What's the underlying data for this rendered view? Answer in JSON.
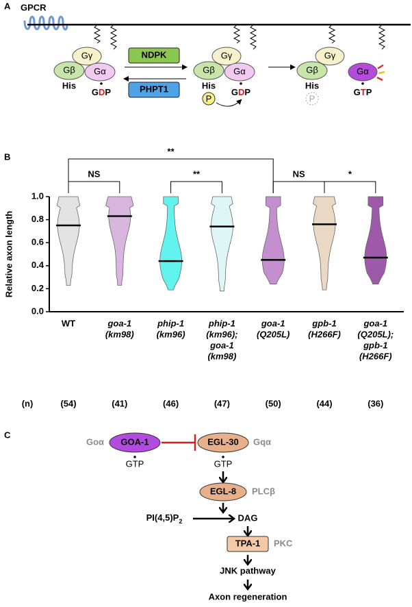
{
  "panel_a": {
    "label": "A",
    "receptor": "GPCR",
    "kinase": "NDPK",
    "phosphatase": "PHPT1",
    "complexes": [
      {
        "g_gamma": "Gγ",
        "g_beta": "Gβ",
        "g_alpha": "Gα",
        "his": "His",
        "nucleotide": [
          "G",
          "D",
          "P"
        ]
      },
      {
        "g_gamma": "Gγ",
        "g_beta": "Gβ",
        "g_alpha": "Gα",
        "his": "His",
        "phospho": "P",
        "nucleotide": [
          "G",
          "D",
          "P"
        ]
      },
      {
        "g_gamma": "Gγ",
        "g_beta": "Gβ",
        "his": "His",
        "phospho": "P"
      }
    ],
    "free_alpha": {
      "g_alpha": "Gα",
      "nucleotide": [
        "G",
        "T",
        "P"
      ]
    }
  },
  "chart_data": {
    "type": "violin",
    "panel_label": "B",
    "y_label": "Relative axon length",
    "categories": [
      [
        "WT"
      ],
      [
        "goa-1",
        "(km98)"
      ],
      [
        "phip-1",
        "(km96)"
      ],
      [
        "phip-1",
        "(km96);",
        "goa-1",
        "(km98)"
      ],
      [
        "goa-1",
        "(Q205L)"
      ],
      [
        "gpb-1",
        "(H266F)"
      ],
      [
        "goa-1",
        "(Q205L);",
        "gpb-1",
        "(H266F)"
      ]
    ],
    "values": [
      0.75,
      0.83,
      0.44,
      0.74,
      0.45,
      0.76,
      0.47
    ],
    "mins": [
      0.23,
      0.23,
      0.19,
      0.18,
      0.24,
      0.19,
      0.24
    ],
    "maxs": [
      1,
      1,
      1,
      1,
      1,
      1,
      1
    ],
    "colors": [
      "#e3e3e3",
      "#d9b6de",
      "#62f3ef",
      "#def6f6",
      "#c48fcf",
      "#e9d8c4",
      "#9d5aa8"
    ],
    "ylim": [
      0,
      1
    ],
    "yticks": [
      {
        "value": 0,
        "label": "0.0"
      },
      0.2,
      0.4,
      0.6,
      0.8,
      {
        "value": 1,
        "label": "1.0"
      }
    ],
    "n": {
      "label": "(n)",
      "values": [
        54,
        41,
        46,
        47,
        50,
        44,
        36
      ],
      "value_labels": [
        "(54)",
        "(41)",
        "(46)",
        "(47)",
        "(50)",
        "(44)",
        "(36)"
      ]
    },
    "comparisons": [
      {
        "from": 0,
        "to": 4,
        "label": "**"
      },
      {
        "from": 0,
        "to": 1,
        "label": "NS"
      },
      {
        "from": 2,
        "to": 3,
        "label": "**"
      },
      {
        "from": 4,
        "to": 5,
        "label": "NS"
      },
      {
        "from": 5,
        "to": 6,
        "label": "*"
      }
    ]
  },
  "panel_c": {
    "label": "C",
    "goa": {
      "name": "GOA-1",
      "family": "Goα",
      "nucleotide": "GTP"
    },
    "egl30": {
      "name": "EGL-30",
      "family": "Gqα",
      "nucleotide": "GTP"
    },
    "egl8": {
      "name": "EGL-8",
      "family": "PLCβ"
    },
    "substrate": {
      "label": "PI(4,5)P",
      "subscript": "2"
    },
    "product": "DAG",
    "tpa1": {
      "name": "TPA-1",
      "family": "PKC"
    },
    "pathway": "JNK pathway",
    "outcome": "Axon regeneration"
  }
}
